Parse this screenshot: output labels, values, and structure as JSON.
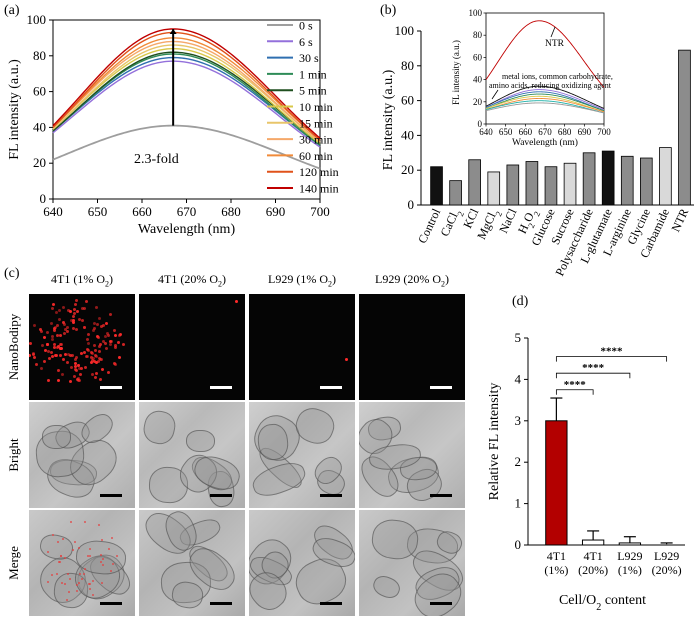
{
  "panel_labels": {
    "a": "(a)",
    "b": "(b)",
    "c": "(c)",
    "d": "(d)"
  },
  "colors": {
    "series": [
      "#9e9e9e",
      "#9370db",
      "#2f6fb0",
      "#2e8b57",
      "#1f4f1f",
      "#d8c84a",
      "#e8c56a",
      "#f5a86a",
      "#f08b3a",
      "#e0521a",
      "#c00000"
    ],
    "bar_dark": "#111111",
    "bar_gray": "#8c8c8c",
    "bar_light": "#d9d9d9",
    "bar_red": "#b30000"
  },
  "chart_data": [
    {
      "type": "line",
      "panel": "(a)",
      "xlabel": "Wavelength (nm)",
      "ylabel": "FL intensity (a.u.)",
      "xlim": [
        640,
        700
      ],
      "ylim": [
        0,
        100
      ],
      "xticks": [
        "640",
        "650",
        "660",
        "670",
        "680",
        "690",
        "700"
      ],
      "yticks": [
        "0",
        "20",
        "40",
        "60",
        "80",
        "100"
      ],
      "peak_x": 667,
      "annotation": "2.3-fold",
      "legend_position": "right",
      "series": [
        {
          "name": "0 s",
          "start": 22,
          "peak": 41,
          "end": 17
        },
        {
          "name": "6 s",
          "start": 37,
          "peak": 77,
          "end": 29
        },
        {
          "name": "30 s",
          "start": 38,
          "peak": 79,
          "end": 30
        },
        {
          "name": "1 min",
          "start": 38,
          "peak": 81,
          "end": 30
        },
        {
          "name": "5 min",
          "start": 38,
          "peak": 82,
          "end": 31
        },
        {
          "name": "10 min",
          "start": 39,
          "peak": 84,
          "end": 31
        },
        {
          "name": "15 min",
          "start": 39,
          "peak": 86,
          "end": 32
        },
        {
          "name": "30 min",
          "start": 40,
          "peak": 88,
          "end": 32
        },
        {
          "name": "60 min",
          "start": 40,
          "peak": 90,
          "end": 33
        },
        {
          "name": "120 min",
          "start": 40,
          "peak": 93,
          "end": 33
        },
        {
          "name": "140 min",
          "start": 41,
          "peak": 95,
          "end": 34
        }
      ]
    },
    {
      "type": "bar",
      "panel": "(b)",
      "ylabel": "FL intensity (a.u.)",
      "ylim": [
        0,
        100
      ],
      "yticks": [
        "0",
        "20",
        "40",
        "60",
        "80",
        "100"
      ],
      "categories": [
        "Control",
        "CaCl2",
        "KCl",
        "MgCl2",
        "NaCl",
        "H2O2",
        "Glucose",
        "Sucrose",
        "Polysaccharide",
        "L-glutamate",
        "L-arginine",
        "Glycine",
        "Carbamide",
        "NTR"
      ],
      "category_labels": [
        {
          "base": "Control",
          "sub": ""
        },
        {
          "base": "CaCl",
          "sub": "2"
        },
        {
          "base": "KCl",
          "sub": ""
        },
        {
          "base": "MgCl",
          "sub": "2"
        },
        {
          "base": "NaCl",
          "sub": ""
        },
        {
          "base": "H",
          "sub": "2",
          "base2": "O",
          "sub2": "2"
        },
        {
          "base": "Glucose",
          "sub": ""
        },
        {
          "base": "Sucrose",
          "sub": ""
        },
        {
          "base": "Polysaccharide",
          "sub": ""
        },
        {
          "base": "L-glutamate",
          "sub": ""
        },
        {
          "base": "L-arginine",
          "sub": ""
        },
        {
          "base": "Glycine",
          "sub": ""
        },
        {
          "base": "Carbamide",
          "sub": ""
        },
        {
          "base": "NTR",
          "sub": ""
        }
      ],
      "values": [
        22,
        14,
        26,
        19,
        23,
        25,
        22,
        24,
        30,
        31,
        28,
        27,
        33,
        89
      ],
      "shades": [
        "dark",
        "gray",
        "gray",
        "light",
        "gray",
        "gray",
        "gray",
        "light",
        "gray",
        "dark",
        "gray",
        "gray",
        "light",
        "gray"
      ]
    },
    {
      "type": "line",
      "panel": "(b) inset",
      "xlabel": "Wavelength (nm)",
      "ylabel": "FL intensity (a.u.)",
      "xlim": [
        640,
        700
      ],
      "ylim": [
        0,
        100
      ],
      "xticks": [
        "640",
        "650",
        "660",
        "670",
        "680",
        "690",
        "700"
      ],
      "yticks": [
        "0",
        "20",
        "40",
        "60",
        "80",
        "100"
      ],
      "peak_x": 667,
      "annotation_ntr": "NTR",
      "annotation_others": [
        "metal ions, common carbohydrate,",
        "amino acids, reducing oxidizing agent"
      ],
      "series": [
        {
          "name": "NTR",
          "start": 40,
          "peak": 93,
          "end": 33,
          "color": "#c00000"
        },
        {
          "start": 16,
          "peak": 34,
          "end": 14,
          "color": "#111111"
        },
        {
          "start": 15,
          "peak": 31,
          "end": 13,
          "color": "#9370db"
        },
        {
          "start": 15,
          "peak": 29,
          "end": 12,
          "color": "#2f6fb0"
        },
        {
          "start": 14,
          "peak": 27,
          "end": 12,
          "color": "#2e8b57"
        },
        {
          "start": 14,
          "peak": 25,
          "end": 11,
          "color": "#d8c84a"
        },
        {
          "start": 13,
          "peak": 23,
          "end": 11,
          "color": "#f08b3a"
        },
        {
          "start": 13,
          "peak": 21,
          "end": 10,
          "color": "#20b2aa"
        },
        {
          "start": 12,
          "peak": 19,
          "end": 10,
          "color": "#999999"
        }
      ]
    },
    {
      "type": "bar",
      "panel": "(d)",
      "xlabel": "Cell/O2 content",
      "xlabel_parts": {
        "base": "Cell/O",
        "sub": "2",
        "rest": " content"
      },
      "ylabel": "Relative FL intensity",
      "ylim": [
        0,
        5
      ],
      "yticks": [
        "0",
        "1",
        "2",
        "3",
        "4",
        "5"
      ],
      "categories": [
        {
          "line1": "4T1",
          "line2": "(1%)"
        },
        {
          "line1": "4T1",
          "line2": "(20%)"
        },
        {
          "line1": "L929",
          "line2": "(1%)"
        },
        {
          "line1": "L929",
          "line2": "(20%)"
        }
      ],
      "values": [
        3.0,
        0.12,
        0.05,
        0.02
      ],
      "errors": [
        0.55,
        0.22,
        0.15,
        0.03
      ],
      "significance": [
        "****",
        "****",
        "****"
      ]
    }
  ],
  "micrograph_panel": {
    "column_titles": [
      {
        "base": "4T1 (1% O",
        "sub": "2",
        "rest": ")"
      },
      {
        "base": "4T1 (20% O",
        "sub": "2",
        "rest": ")"
      },
      {
        "base": "L929 (1% O",
        "sub": "2",
        "rest": ")"
      },
      {
        "base": "L929 (20% O",
        "sub": "2",
        "rest": ")"
      }
    ],
    "row_labels": [
      "NanoBodipy",
      "Bright",
      "Merge"
    ]
  }
}
